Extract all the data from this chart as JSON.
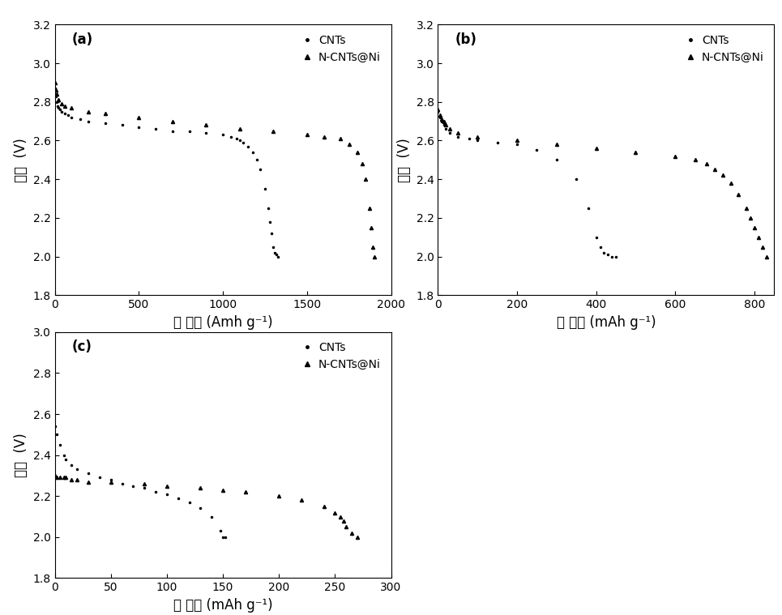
{
  "panels": [
    "(a)",
    "(b)",
    "(c)"
  ],
  "xlabels": [
    "比 容量 (Amh g⁻¹)",
    "比 容量 (mAh g⁻¹)",
    "比 容量 (mAh g⁻¹)"
  ],
  "ylabel": "电压  (V)",
  "legend_entries": [
    "CNTs",
    "N-CNTs@Ni"
  ],
  "panel_a": {
    "ylim": [
      1.8,
      3.2
    ],
    "xlim": [
      0,
      2000
    ],
    "yticks": [
      1.8,
      2.0,
      2.2,
      2.4,
      2.6,
      2.8,
      3.0,
      3.2
    ],
    "xticks": [
      0,
      500,
      1000,
      1500,
      2000
    ],
    "CNTs_x": [
      0,
      5,
      10,
      15,
      20,
      30,
      40,
      60,
      80,
      100,
      150,
      200,
      300,
      400,
      500,
      600,
      700,
      800,
      900,
      1000,
      1050,
      1080,
      1100,
      1120,
      1150,
      1180,
      1200,
      1220,
      1250,
      1270,
      1280,
      1290,
      1300,
      1310,
      1320,
      1330
    ],
    "CNTs_y": [
      2.87,
      2.83,
      2.8,
      2.78,
      2.77,
      2.76,
      2.75,
      2.74,
      2.73,
      2.72,
      2.71,
      2.7,
      2.69,
      2.68,
      2.67,
      2.66,
      2.65,
      2.65,
      2.64,
      2.63,
      2.62,
      2.61,
      2.6,
      2.59,
      2.57,
      2.54,
      2.5,
      2.45,
      2.35,
      2.25,
      2.18,
      2.12,
      2.05,
      2.02,
      2.01,
      2.0
    ],
    "NCNTs_x": [
      0,
      5,
      10,
      20,
      40,
      60,
      100,
      200,
      300,
      500,
      700,
      900,
      1100,
      1300,
      1500,
      1600,
      1700,
      1750,
      1800,
      1830,
      1850,
      1870,
      1880,
      1890,
      1900
    ],
    "NCNTs_y": [
      2.9,
      2.86,
      2.84,
      2.81,
      2.79,
      2.78,
      2.77,
      2.75,
      2.74,
      2.72,
      2.7,
      2.68,
      2.66,
      2.65,
      2.63,
      2.62,
      2.61,
      2.58,
      2.54,
      2.48,
      2.4,
      2.25,
      2.15,
      2.05,
      2.0
    ]
  },
  "panel_b": {
    "ylim": [
      1.8,
      3.2
    ],
    "xlim": [
      0,
      850
    ],
    "yticks": [
      1.8,
      2.0,
      2.2,
      2.4,
      2.6,
      2.8,
      3.0,
      3.2
    ],
    "xticks": [
      0,
      200,
      400,
      600,
      800
    ],
    "CNTs_x": [
      0,
      5,
      10,
      15,
      20,
      30,
      50,
      80,
      100,
      150,
      200,
      250,
      300,
      350,
      380,
      400,
      410,
      420,
      430,
      440,
      450
    ],
    "CNTs_y": [
      2.75,
      2.72,
      2.7,
      2.68,
      2.66,
      2.64,
      2.62,
      2.61,
      2.6,
      2.59,
      2.58,
      2.55,
      2.5,
      2.4,
      2.25,
      2.1,
      2.05,
      2.02,
      2.01,
      2.0,
      2.0
    ],
    "NCNTs_x": [
      0,
      5,
      10,
      15,
      20,
      30,
      50,
      100,
      200,
      300,
      400,
      500,
      600,
      650,
      680,
      700,
      720,
      740,
      760,
      780,
      790,
      800,
      810,
      820,
      830
    ],
    "NCNTs_y": [
      2.76,
      2.73,
      2.71,
      2.7,
      2.68,
      2.66,
      2.64,
      2.62,
      2.6,
      2.58,
      2.56,
      2.54,
      2.52,
      2.5,
      2.48,
      2.45,
      2.42,
      2.38,
      2.32,
      2.25,
      2.2,
      2.15,
      2.1,
      2.05,
      2.0
    ]
  },
  "panel_c": {
    "ylim": [
      1.8,
      3.0
    ],
    "xlim": [
      0,
      300
    ],
    "yticks": [
      1.8,
      2.0,
      2.2,
      2.4,
      2.6,
      2.8,
      3.0
    ],
    "xticks": [
      0,
      50,
      100,
      150,
      200,
      250,
      300
    ],
    "CNTs_x": [
      0,
      2,
      5,
      8,
      10,
      15,
      20,
      30,
      40,
      50,
      60,
      70,
      80,
      90,
      100,
      110,
      120,
      130,
      140,
      148,
      150,
      152
    ],
    "CNTs_y": [
      2.54,
      2.5,
      2.45,
      2.4,
      2.38,
      2.35,
      2.33,
      2.31,
      2.29,
      2.28,
      2.26,
      2.25,
      2.24,
      2.22,
      2.21,
      2.19,
      2.17,
      2.14,
      2.1,
      2.03,
      2.0,
      2.0
    ],
    "NCNTs_x": [
      0,
      2,
      5,
      8,
      10,
      15,
      20,
      30,
      50,
      80,
      100,
      130,
      150,
      170,
      200,
      220,
      240,
      250,
      255,
      258,
      260,
      265,
      270
    ],
    "NCNTs_y": [
      2.3,
      2.29,
      2.29,
      2.29,
      2.29,
      2.28,
      2.28,
      2.27,
      2.27,
      2.26,
      2.25,
      2.24,
      2.23,
      2.22,
      2.2,
      2.18,
      2.15,
      2.12,
      2.1,
      2.08,
      2.05,
      2.02,
      2.0
    ]
  },
  "background_color": "#ffffff",
  "line_color": "#000000",
  "dot_marker": ".",
  "triangle_marker": "^",
  "marker_size_dot": 3,
  "marker_size_tri": 3,
  "fontsize_label": 12,
  "fontsize_tick": 10,
  "fontsize_panel": 12
}
